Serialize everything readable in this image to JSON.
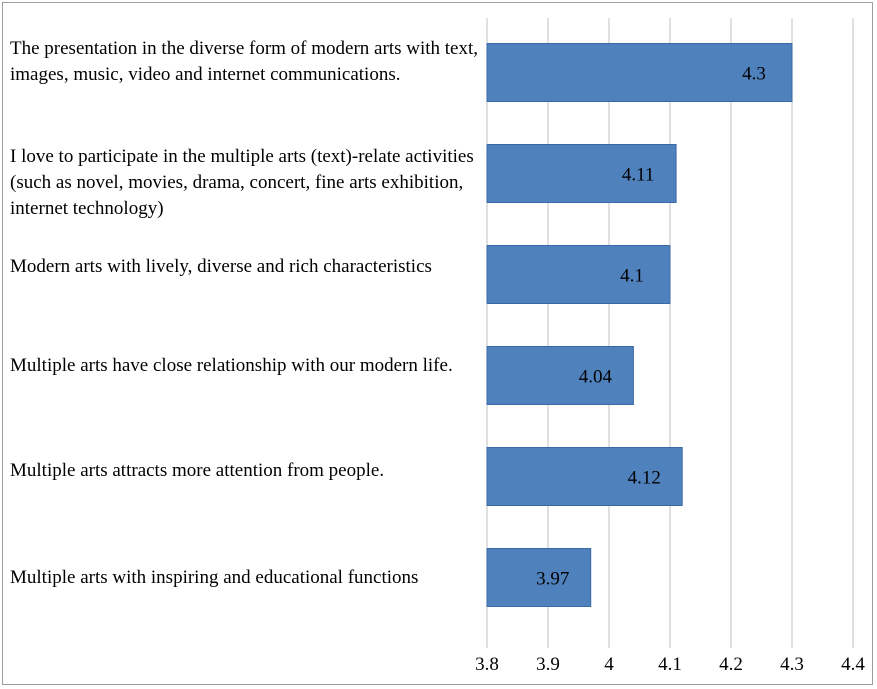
{
  "chart_data": {
    "type": "bar",
    "orientation": "horizontal",
    "categories": [
      "The presentation in the diverse form of modern arts with text, images, music, video and internet communications.",
      "I love to participate in the multiple arts (text)-relate activities (such as novel, movies, drama, concert, fine arts exhibition, internet technology)",
      "Modern arts with lively, diverse and rich characteristics",
      "Multiple arts have close relationship with our modern life.",
      "Multiple arts attracts more attention from people.",
      "Multiple arts with inspiring and educational functions"
    ],
    "values": [
      4.3,
      4.11,
      4.1,
      4.04,
      4.12,
      3.97
    ],
    "data_labels": [
      "4.3",
      "4.11",
      "4.1",
      "4.04",
      "4.12",
      "3.97"
    ],
    "xlim": [
      3.8,
      4.4
    ],
    "x_ticks": [
      "3.8",
      "3.9",
      "4",
      "4.1",
      "4.2",
      "4.3",
      "4.4"
    ],
    "grid": "vertical",
    "legend": "none",
    "bar_color": "#4f81bd",
    "bar_edge_color": "#3a6aa5",
    "gridline_color": "#c0c0c0"
  }
}
